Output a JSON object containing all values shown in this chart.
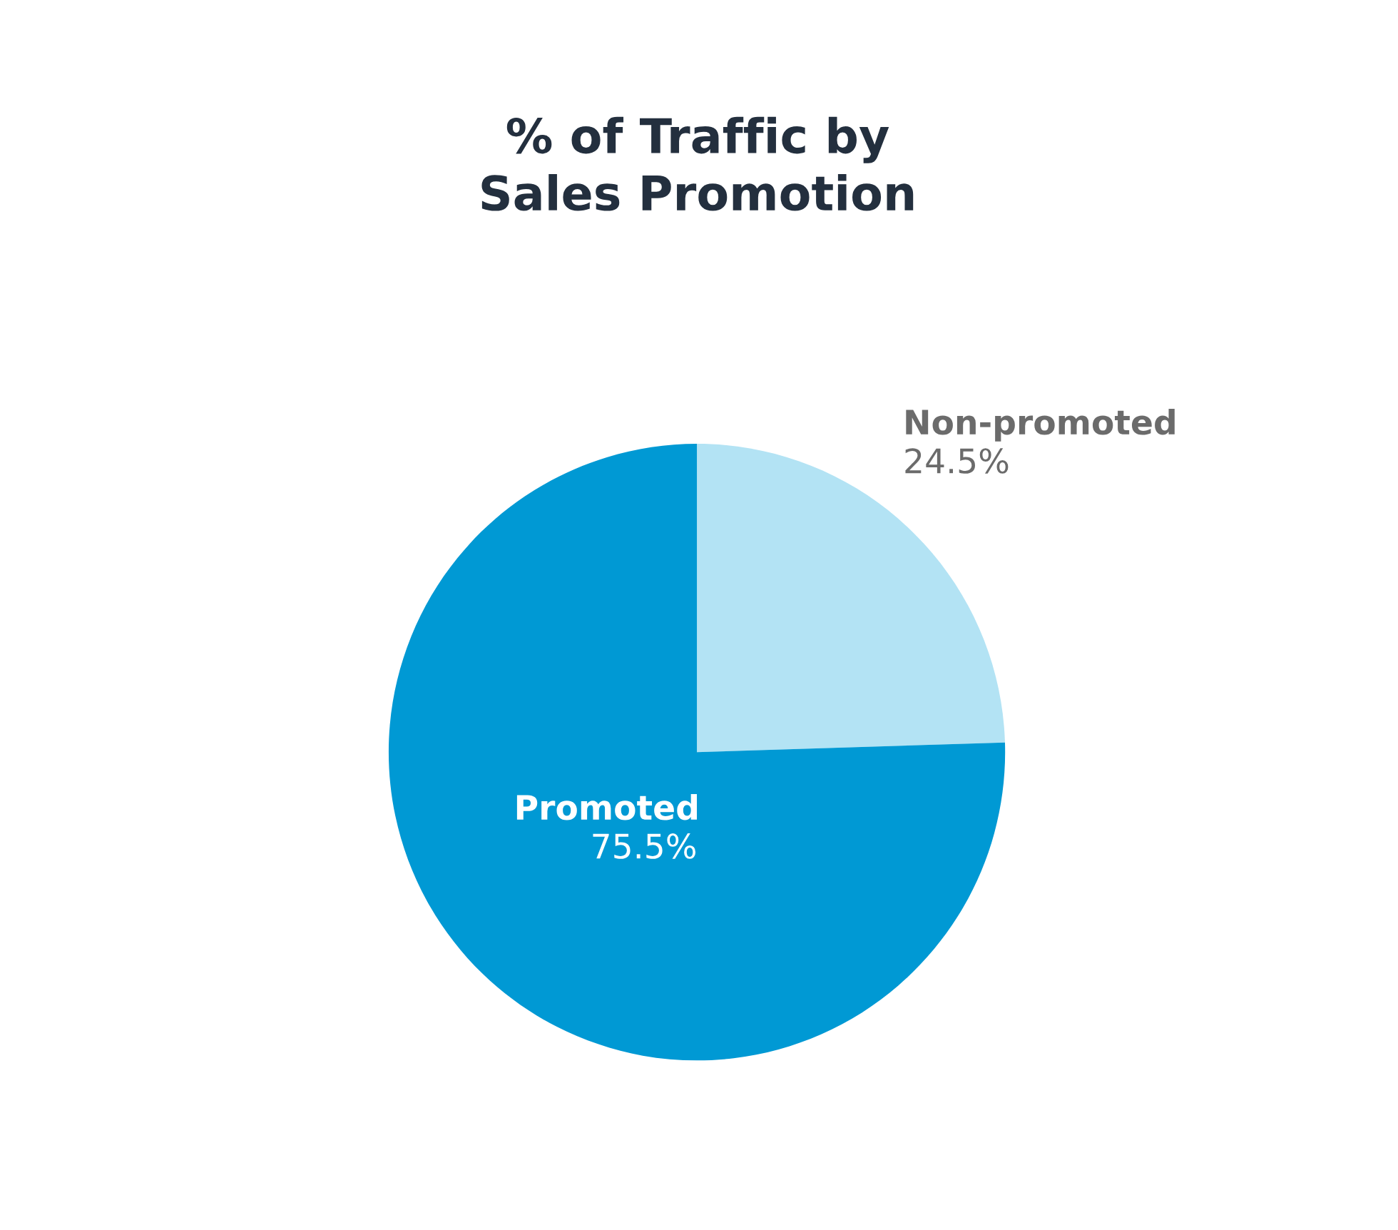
{
  "chart_data": {
    "type": "pie",
    "title": "% of Traffic by\nSales Promotion",
    "categories": [
      "Non-promoted",
      "Promoted"
    ],
    "values": [
      24.5,
      75.5
    ],
    "colors": [
      "#b3e3f4",
      "#0099d4"
    ],
    "value_labels": [
      "24.5%",
      "75.5%"
    ],
    "legend": false
  }
}
